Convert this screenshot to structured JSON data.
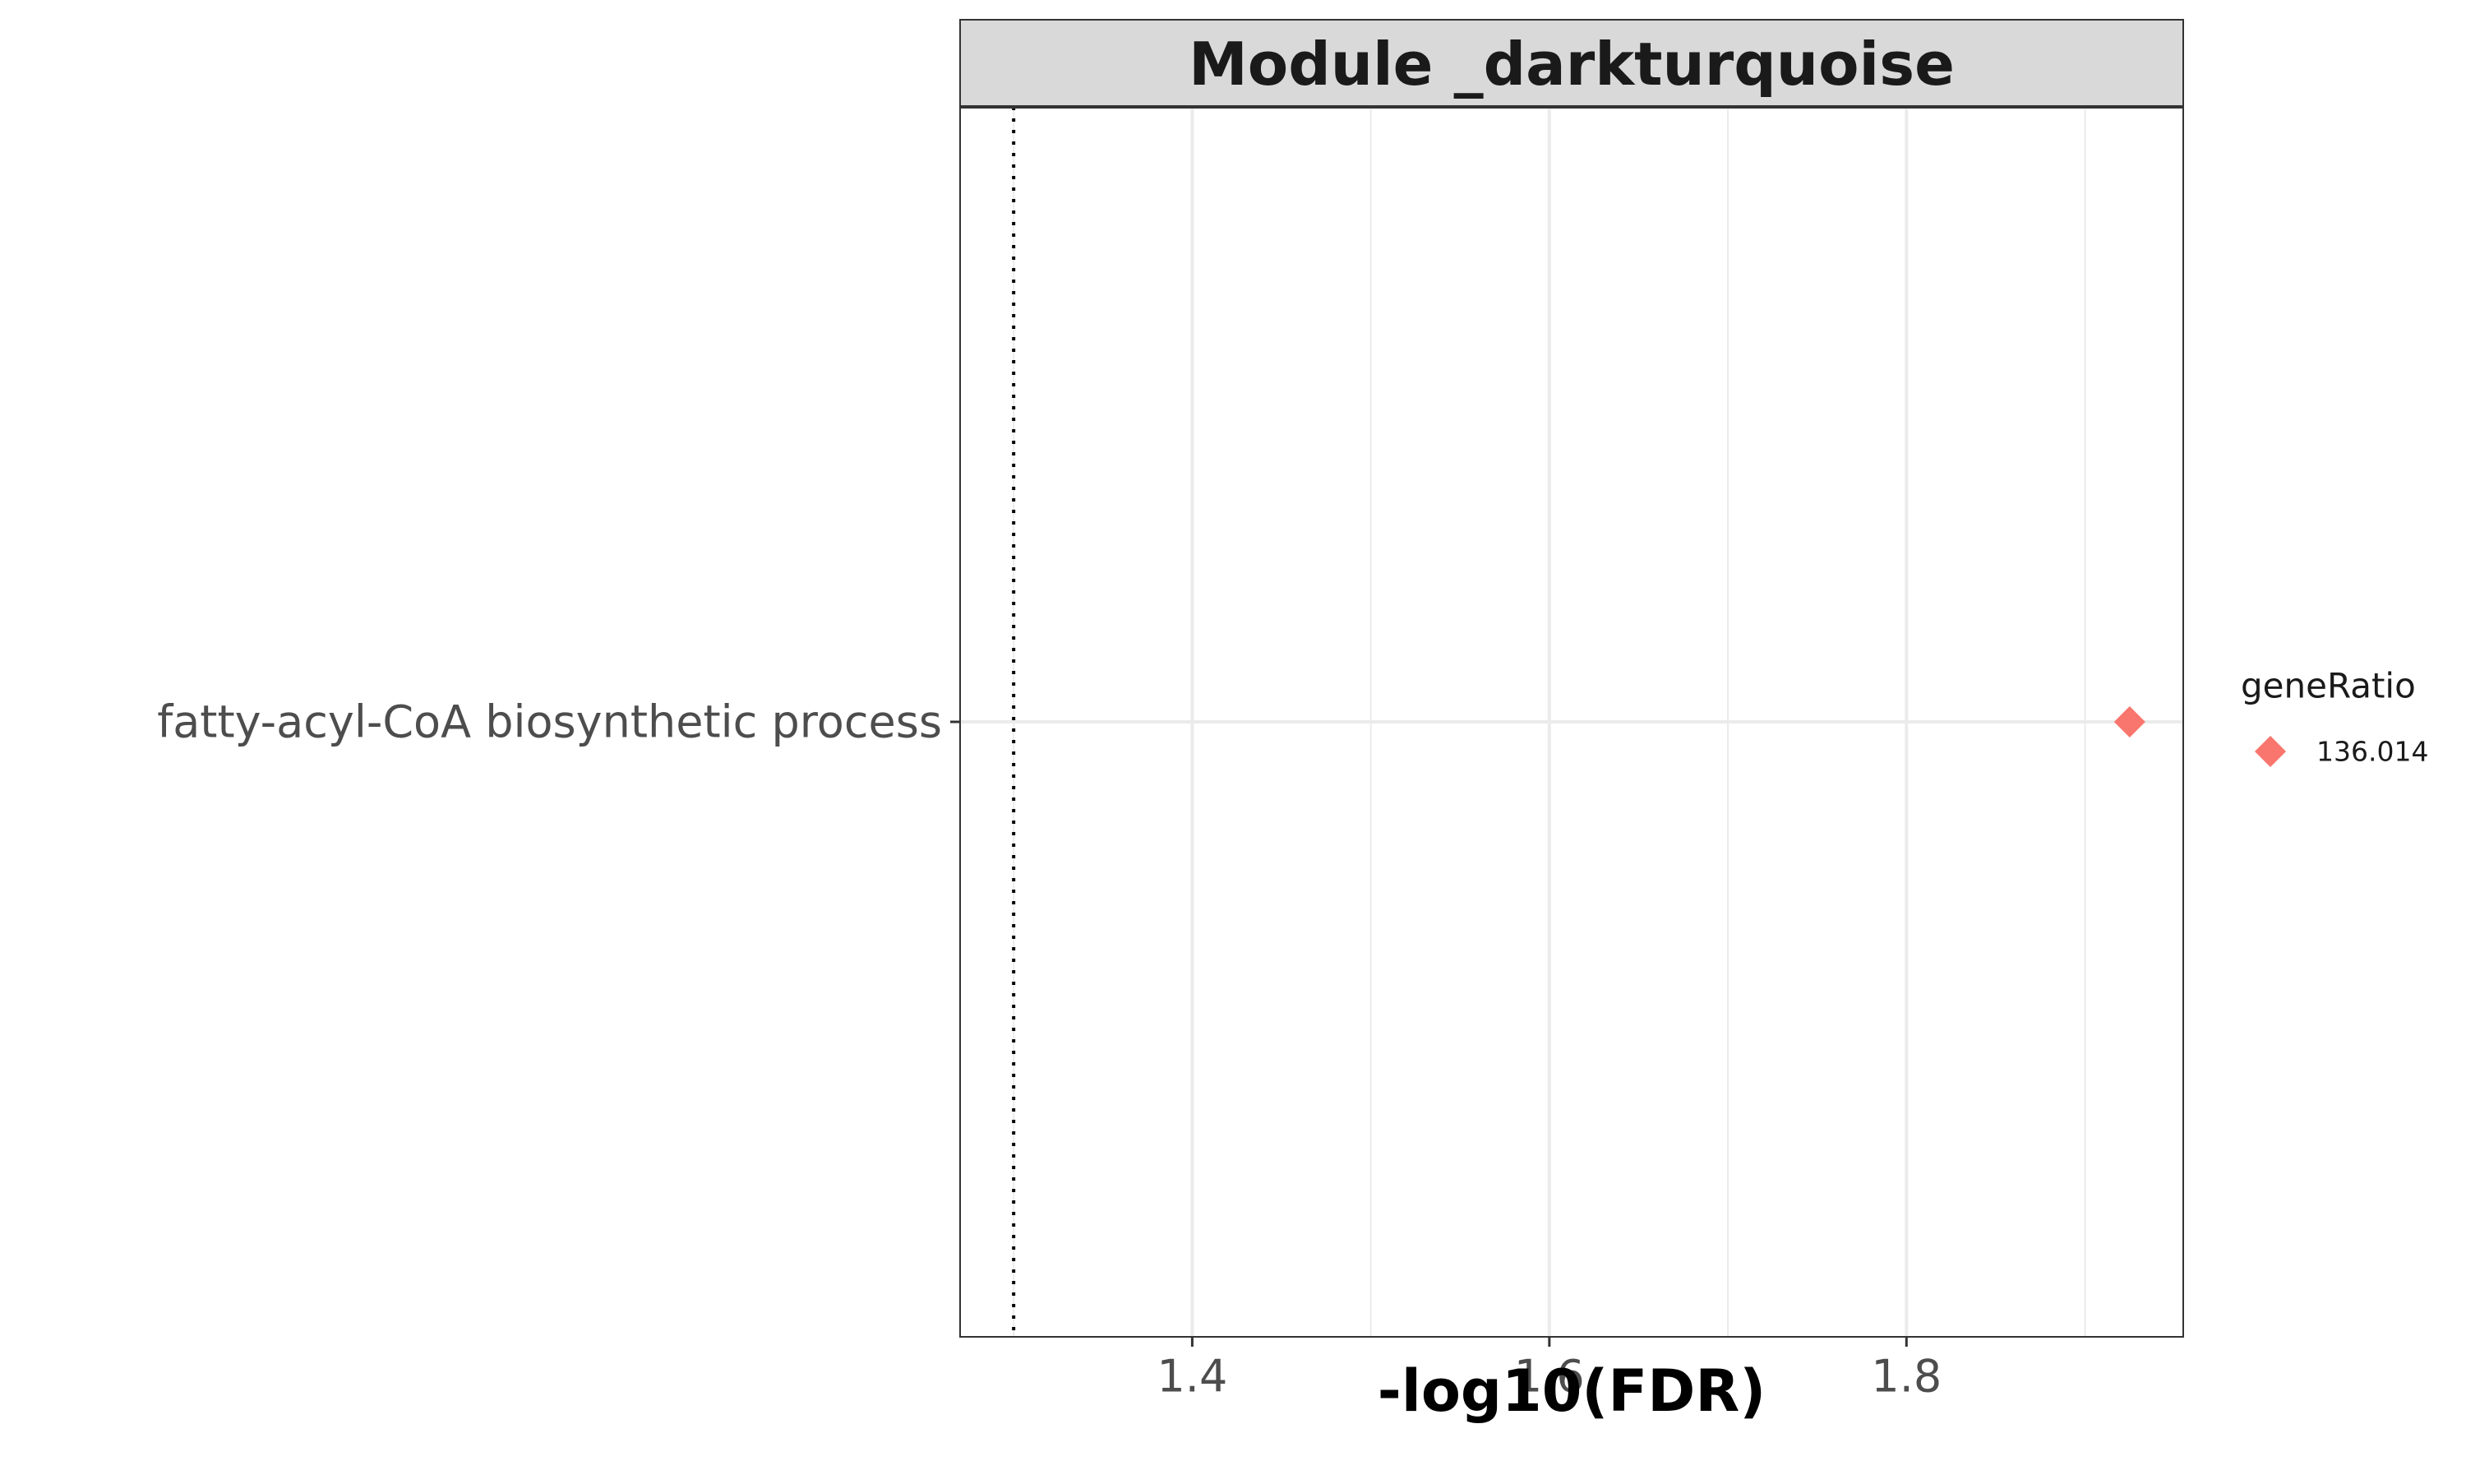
{
  "chart_data": {
    "type": "scatter",
    "title": "Module _darkturquoise",
    "xlabel": "-log10(FDR)",
    "ylabel": "",
    "xlim": [
      1.27,
      1.955
    ],
    "x_ticks": [
      1.4,
      1.6,
      1.8
    ],
    "x_tick_labels": [
      "1.4",
      "1.6",
      "1.8"
    ],
    "x_minor_gridlines": [
      1.3,
      1.5,
      1.7,
      1.9
    ],
    "reference_line": {
      "x": 1.3,
      "style": "dotted"
    },
    "categories": [
      "fatty-acyl-CoA biosynthetic process"
    ],
    "points": [
      {
        "category": "fatty-acyl-CoA biosynthetic process",
        "x": 1.925,
        "series": "136.014"
      }
    ],
    "legend": {
      "title": "geneRatio",
      "placement": "right",
      "entries": [
        {
          "label": "136.014",
          "color": "#F8766D",
          "marker": "diamond"
        }
      ]
    },
    "marker_color": "#F8766D",
    "strip_fill": "#D9D9D9",
    "grid": true
  }
}
